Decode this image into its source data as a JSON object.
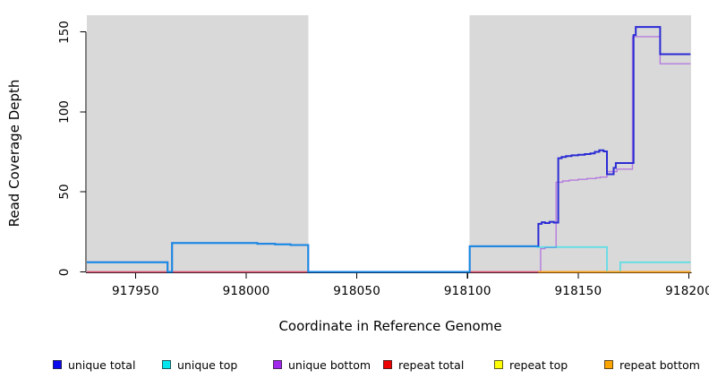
{
  "figure": {
    "x_axis_title": "Coordinate in Reference Genome",
    "y_axis_title": "Read Coverage Depth"
  },
  "chart_data": {
    "type": "line",
    "step_mode": "step-after",
    "title": "",
    "xlabel": "Coordinate in Reference Genome",
    "ylabel": "Read Coverage Depth",
    "xlim": [
      917928,
      918201
    ],
    "ylim": [
      0,
      160
    ],
    "grid": false,
    "legend_position": "bottom",
    "background_color": "#ffffff",
    "shaded_region_color": "#d9d9d9",
    "shaded_regions": [
      {
        "x0": 917928,
        "x1": 918028
      },
      {
        "x0": 918101,
        "x1": 918201
      }
    ],
    "x_ticks": [
      {
        "value": 917950,
        "label": "917950"
      },
      {
        "value": 918000,
        "label": "918000"
      },
      {
        "value": 918050,
        "label": "918050"
      },
      {
        "value": 918100,
        "label": "918100"
      },
      {
        "value": 918150,
        "label": "918150"
      },
      {
        "value": 918200,
        "label": "918200"
      }
    ],
    "y_ticks": [
      {
        "value": 0,
        "label": "0"
      },
      {
        "value": 50,
        "label": "50"
      },
      {
        "value": 100,
        "label": "100"
      },
      {
        "value": 150,
        "label": "150"
      }
    ],
    "end_x": 918200.7,
    "draw_order": [
      "repeat top",
      "unique bottom",
      "repeat total",
      "unique total",
      "unique top",
      "repeat bottom"
    ],
    "series": [
      {
        "name": "unique total",
        "line_color": "#2b2bd5",
        "legend_color": "#0a0aee",
        "line_width": 2,
        "opacity": 1,
        "points": [
          [
            917928,
            6
          ],
          [
            917964.5,
            0
          ],
          [
            917966.5,
            18
          ],
          [
            918005,
            17.6
          ],
          [
            918013,
            17.2
          ],
          [
            918020,
            16.8
          ],
          [
            918028,
            0
          ],
          [
            918101,
            16
          ],
          [
            918132,
            30
          ],
          [
            918133.5,
            31
          ],
          [
            918135,
            30.5
          ],
          [
            918137,
            31.3
          ],
          [
            918139,
            30.8
          ],
          [
            918141,
            71
          ],
          [
            918142.5,
            71.8
          ],
          [
            918144.5,
            72.3
          ],
          [
            918147,
            72.8
          ],
          [
            918150,
            73.2
          ],
          [
            918153,
            73.6
          ],
          [
            918155.5,
            74
          ],
          [
            918157.5,
            75
          ],
          [
            918159.5,
            76
          ],
          [
            918161.5,
            75.3
          ],
          [
            918163,
            61
          ],
          [
            918166,
            65
          ],
          [
            918167,
            68
          ],
          [
            918175,
            148
          ],
          [
            918176,
            153
          ],
          [
            918187,
            136
          ]
        ]
      },
      {
        "name": "unique top",
        "line_color": "#00e0f0",
        "legend_color": "#00e5ee",
        "line_width": 1.8,
        "opacity": 0.55,
        "points": [
          [
            917928,
            6
          ],
          [
            917964.5,
            0
          ],
          [
            917966.5,
            18
          ],
          [
            918005,
            17.6
          ],
          [
            918013,
            17.2
          ],
          [
            918020,
            16.8
          ],
          [
            918028,
            0
          ],
          [
            918101,
            16
          ],
          [
            918131.5,
            15.5
          ],
          [
            918163,
            0
          ],
          [
            918169,
            6
          ]
        ]
      },
      {
        "name": "unique bottom",
        "line_color": "#b57bde",
        "legend_color": "#a228ed",
        "line_width": 1.4,
        "opacity": 1,
        "points": [
          [
            917928,
            0
          ],
          [
            918133,
            14.5
          ],
          [
            918135,
            15.2
          ],
          [
            918140,
            56
          ],
          [
            918143,
            56.8
          ],
          [
            918146,
            57.3
          ],
          [
            918150,
            57.8
          ],
          [
            918154,
            58.3
          ],
          [
            918158,
            58.8
          ],
          [
            918160,
            59.2
          ],
          [
            918163,
            62.7
          ],
          [
            918167.5,
            64.2
          ],
          [
            918174.5,
            147
          ],
          [
            918187,
            130
          ]
        ]
      },
      {
        "name": "repeat total",
        "line_color": "#e25568",
        "legend_color": "#ee0000",
        "line_width": 1.4,
        "opacity": 1,
        "points": [
          [
            917928,
            0
          ]
        ]
      },
      {
        "name": "repeat top",
        "line_color": "#f5f500",
        "legend_color": "#ffff00",
        "line_width": 1.4,
        "opacity": 1,
        "points": [
          [
            918132,
            0
          ]
        ]
      },
      {
        "name": "repeat bottom",
        "line_color": "#ffa519",
        "legend_color": "#ffa500",
        "line_width": 1.8,
        "opacity": 1,
        "points": [
          [
            918132,
            0
          ]
        ]
      }
    ]
  },
  "legend": {
    "items": [
      {
        "label": "unique total",
        "color": "#0a0aee"
      },
      {
        "label": "unique top",
        "color": "#00e5ee"
      },
      {
        "label": "unique bottom",
        "color": "#a228ed"
      },
      {
        "label": "repeat total",
        "color": "#ee0000"
      },
      {
        "label": "repeat top",
        "color": "#ffff00"
      },
      {
        "label": "repeat bottom",
        "color": "#ffa500"
      }
    ]
  }
}
